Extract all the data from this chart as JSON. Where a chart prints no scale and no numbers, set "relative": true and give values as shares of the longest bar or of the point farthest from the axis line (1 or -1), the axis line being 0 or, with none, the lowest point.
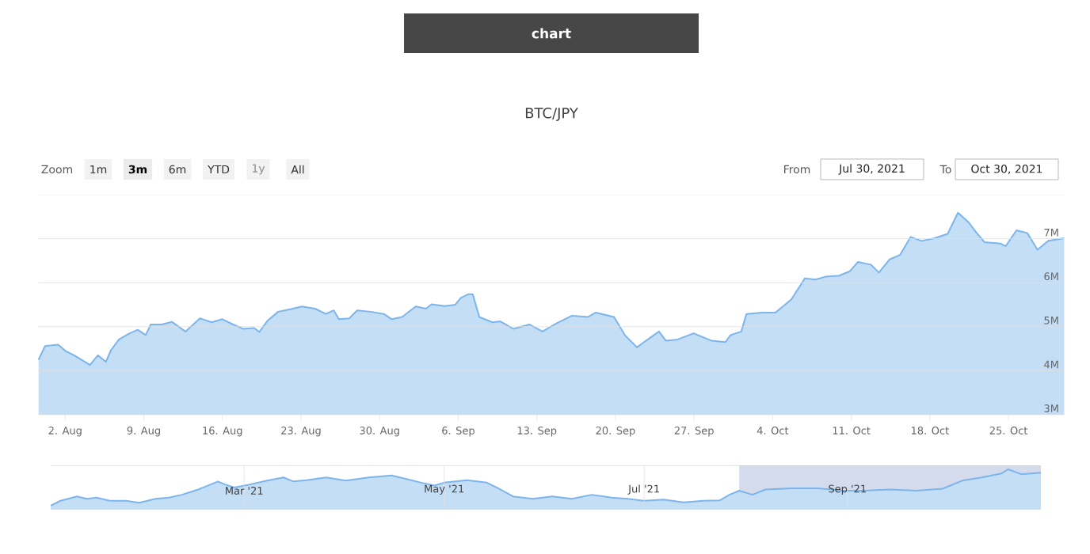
{
  "chart_data": [
    {
      "type": "area",
      "title": "BTC/JPY",
      "color": "#7cb5ec",
      "grid": "y",
      "line_style": "solid",
      "annotations": [
        "chart",
        "Zoom",
        "1m",
        "3m",
        "6m",
        "YTD",
        "1y",
        "All",
        "From",
        "Jul 30, 2021",
        "To",
        "Oct 30, 2021"
      ],
      "xlim": [
        "2021-07-30T14:00",
        "2021-10-30T00:00"
      ],
      "xticks": [
        {
          "value": "2021-08-02",
          "label": "2. Aug"
        },
        {
          "value": "2021-08-09",
          "label": "9. Aug"
        },
        {
          "value": "2021-08-16",
          "label": "16. Aug"
        },
        {
          "value": "2021-08-23",
          "label": "23. Aug"
        },
        {
          "value": "2021-08-30",
          "label": "30. Aug"
        },
        {
          "value": "2021-09-06",
          "label": "6. Sep"
        },
        {
          "value": "2021-09-13",
          "label": "13. Sep"
        },
        {
          "value": "2021-09-20",
          "label": "20. Sep"
        },
        {
          "value": "2021-09-27",
          "label": "27. Sep"
        },
        {
          "value": "2021-10-04",
          "label": "4. Oct"
        },
        {
          "value": "2021-10-11",
          "label": "11. Oct"
        },
        {
          "value": "2021-10-18",
          "label": "18. Oct"
        },
        {
          "value": "2021-10-25",
          "label": "25. Oct"
        }
      ],
      "ylim": [
        3000000,
        8000000
      ],
      "yticks": [
        {
          "value": 3000000,
          "label": "3M"
        },
        {
          "value": 4000000,
          "label": "4M"
        },
        {
          "value": 5000000,
          "label": "5M"
        },
        {
          "value": 6000000,
          "label": "6M"
        },
        {
          "value": 7000000,
          "label": "7M"
        }
      ],
      "x": [
        "2021-07-30T15:00",
        "2021-07-31T05:00",
        "2021-08-01T09:00",
        "2021-08-02T02:00",
        "2021-08-02T19:00",
        "2021-08-04T05:00",
        "2021-08-04T22:00",
        "2021-08-05T15:00",
        "2021-08-06T02:00",
        "2021-08-06T19:00",
        "2021-08-07T18:00",
        "2021-08-08T11:00",
        "2021-08-09T04:00",
        "2021-08-09T15:00",
        "2021-08-10T14:00",
        "2021-08-11T12:00",
        "2021-08-12T17:00",
        "2021-08-14T00:00",
        "2021-08-15T01:00",
        "2021-08-16T00:00",
        "2021-08-16T23:00",
        "2021-08-17T21:00",
        "2021-08-18T20:00",
        "2021-08-19T07:00",
        "2021-08-20T00:00",
        "2021-08-20T23:00",
        "2021-08-22T03:00",
        "2021-08-23T02:00",
        "2021-08-24T06:00",
        "2021-08-25T05:00",
        "2021-08-25T22:00",
        "2021-08-26T09:00",
        "2021-08-27T07:00",
        "2021-08-28T00:00",
        "2021-08-29T05:00",
        "2021-08-30T09:00",
        "2021-08-31T02:00",
        "2021-09-01T00:00",
        "2021-09-02T05:00",
        "2021-09-03T03:00",
        "2021-09-03T15:00",
        "2021-09-04T19:00",
        "2021-09-05T18:00",
        "2021-09-06T05:00",
        "2021-09-06T22:00",
        "2021-09-07T07:00",
        "2021-09-07T21:00",
        "2021-09-09T01:00",
        "2021-09-09T18:00",
        "2021-09-10T22:00",
        "2021-09-12T08:00",
        "2021-09-13T12:00",
        "2021-09-14T17:00",
        "2021-09-16T03:00",
        "2021-09-17T13:00",
        "2021-09-18T06:00",
        "2021-09-19T21:00",
        "2021-09-20T20:00",
        "2021-09-21T22:00",
        "2021-09-22T17:00",
        "2021-09-23T21:00",
        "2021-09-24T12:00",
        "2021-09-25T13:00",
        "2021-09-26T23:00",
        "2021-09-28T14:00",
        "2021-09-29T19:00",
        "2021-09-30T06:00",
        "2021-10-01T05:00",
        "2021-10-01T16:00",
        "2021-10-03T02:00",
        "2021-10-04T06:00",
        "2021-10-05T16:00",
        "2021-10-06T21:00",
        "2021-10-07T19:00",
        "2021-10-08T18:00",
        "2021-10-09T22:00",
        "2021-10-10T21:00",
        "2021-10-11T14:00",
        "2021-10-12T18:00",
        "2021-10-13T11:00",
        "2021-10-14T10:00",
        "2021-10-15T08:00",
        "2021-10-16T07:00",
        "2021-10-17T06:00",
        "2021-10-18T10:00",
        "2021-10-19T14:00",
        "2021-10-20T12:00",
        "2021-10-21T11:00",
        "2021-10-22T04:00",
        "2021-10-22T21:00",
        "2021-10-24T07:00",
        "2021-10-24T18:00",
        "2021-10-25T17:00",
        "2021-10-26T16:00",
        "2021-10-27T14:00",
        "2021-10-28T13:00",
        "2021-10-29T23:00"
      ],
      "values": [
        4250000,
        4560000,
        4590000,
        4440000,
        4350000,
        4130000,
        4350000,
        4200000,
        4470000,
        4710000,
        4850000,
        4930000,
        4810000,
        5050000,
        5050000,
        5110000,
        4890000,
        5190000,
        5100000,
        5170000,
        5050000,
        4950000,
        4970000,
        4880000,
        5130000,
        5340000,
        5400000,
        5460000,
        5410000,
        5290000,
        5370000,
        5170000,
        5190000,
        5370000,
        5340000,
        5290000,
        5170000,
        5220000,
        5460000,
        5410000,
        5510000,
        5470000,
        5500000,
        5650000,
        5740000,
        5740000,
        5220000,
        5100000,
        5120000,
        4950000,
        5050000,
        4890000,
        5070000,
        5250000,
        5220000,
        5320000,
        5220000,
        4810000,
        4530000,
        4680000,
        4890000,
        4680000,
        4710000,
        4850000,
        4680000,
        4650000,
        4810000,
        4890000,
        5290000,
        5320000,
        5320000,
        5620000,
        6100000,
        6070000,
        6140000,
        6160000,
        6260000,
        6470000,
        6410000,
        6230000,
        6530000,
        6630000,
        7040000,
        6950000,
        7010000,
        7110000,
        7590000,
        7370000,
        7130000,
        6920000,
        6890000,
        6830000,
        7190000,
        7130000,
        6750000,
        6950000,
        7010000
      ]
    },
    {
      "type": "area",
      "relative": true,
      "color": "#7cb5ec",
      "grid": "x",
      "tick_labels": "x",
      "xlim": [
        "2021-01-01",
        "2021-10-30"
      ],
      "xticks": [
        {
          "value": "2021-03-01",
          "label": "Mar '21"
        },
        {
          "value": "2021-05-01",
          "label": "May '21"
        },
        {
          "value": "2021-07-01",
          "label": "Jul '21"
        },
        {
          "value": "2021-09-01",
          "label": "Sep '21"
        }
      ],
      "bands": [
        {
          "axis": "x",
          "from": "2021-07-30",
          "to": "2021-10-30",
          "color": "#d3dbec"
        }
      ],
      "x": [
        "2021-01-01",
        "2021-01-04",
        "2021-01-09",
        "2021-01-12",
        "2021-01-15",
        "2021-01-19",
        "2021-01-24",
        "2021-01-28",
        "2021-02-02",
        "2021-02-06",
        "2021-02-10",
        "2021-02-15",
        "2021-02-18",
        "2021-02-21",
        "2021-02-23",
        "2021-02-26",
        "2021-03-03",
        "2021-03-08",
        "2021-03-13",
        "2021-03-16",
        "2021-03-20",
        "2021-03-26",
        "2021-04-01",
        "2021-04-08",
        "2021-04-15",
        "2021-04-19",
        "2021-04-24",
        "2021-04-28",
        "2021-05-01",
        "2021-05-08",
        "2021-05-14",
        "2021-05-17",
        "2021-05-22",
        "2021-05-28",
        "2021-06-03",
        "2021-06-09",
        "2021-06-15",
        "2021-06-21",
        "2021-06-26",
        "2021-07-01",
        "2021-07-07",
        "2021-07-13",
        "2021-07-19",
        "2021-07-24",
        "2021-07-27",
        "2021-07-30",
        "2021-08-03",
        "2021-08-07",
        "2021-08-15",
        "2021-08-23",
        "2021-08-31",
        "2021-09-06",
        "2021-09-14",
        "2021-09-22",
        "2021-09-30",
        "2021-10-06",
        "2021-10-12",
        "2021-10-18",
        "2021-10-20",
        "2021-10-24",
        "2021-10-30"
      ],
      "values": [
        0.1,
        0.22,
        0.33,
        0.27,
        0.3,
        0.22,
        0.22,
        0.17,
        0.27,
        0.3,
        0.37,
        0.5,
        0.6,
        0.7,
        0.63,
        0.55,
        0.63,
        0.72,
        0.8,
        0.7,
        0.73,
        0.8,
        0.72,
        0.8,
        0.85,
        0.77,
        0.67,
        0.6,
        0.67,
        0.73,
        0.67,
        0.55,
        0.33,
        0.27,
        0.33,
        0.27,
        0.37,
        0.3,
        0.27,
        0.22,
        0.25,
        0.18,
        0.22,
        0.23,
        0.37,
        0.47,
        0.37,
        0.5,
        0.53,
        0.53,
        0.47,
        0.47,
        0.5,
        0.47,
        0.52,
        0.72,
        0.8,
        0.9,
        1.0,
        0.88,
        0.92
      ]
    }
  ]
}
